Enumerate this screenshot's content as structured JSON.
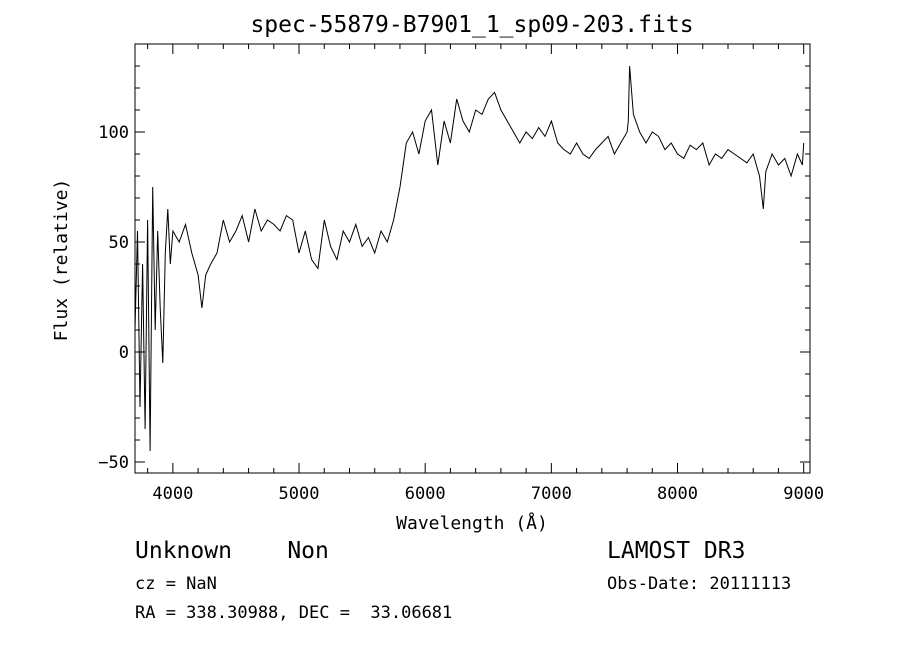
{
  "chart_data": {
    "type": "line",
    "title": "spec-55879-B7901_1_sp09-203.fits",
    "xlabel": "Wavelength (Å)",
    "ylabel": "Flux (relative)",
    "xlim": [
      3700,
      9050
    ],
    "ylim": [
      -55,
      140
    ],
    "xticks": [
      4000,
      5000,
      6000,
      7000,
      8000,
      9000
    ],
    "xtick_labels": [
      "4000",
      "5000",
      "6000",
      "7000",
      "8000",
      "9000"
    ],
    "yticks": [
      -50,
      0,
      50,
      100
    ],
    "ytick_labels": [
      "−50",
      "0",
      "50",
      "100"
    ],
    "line_color": "#000000",
    "grid": false,
    "series": [
      {
        "x": [
          3700,
          3720,
          3740,
          3760,
          3780,
          3800,
          3820,
          3840,
          3860,
          3880,
          3900,
          3920,
          3940,
          3960,
          3980,
          4000,
          4050,
          4100,
          4150,
          4200,
          4230,
          4260,
          4300,
          4350,
          4400,
          4450,
          4500,
          4550,
          4600,
          4650,
          4700,
          4750,
          4800,
          4850,
          4900,
          4950,
          5000,
          5050,
          5100,
          5150,
          5200,
          5250,
          5300,
          5350,
          5400,
          5450,
          5500,
          5550,
          5600,
          5650,
          5700,
          5750,
          5800,
          5850,
          5900,
          5950,
          6000,
          6050,
          6100,
          6150,
          6200,
          6250,
          6300,
          6350,
          6400,
          6450,
          6500,
          6550,
          6600,
          6650,
          6700,
          6750,
          6800,
          6850,
          6900,
          6950,
          7000,
          7050,
          7100,
          7150,
          7200,
          7250,
          7300,
          7350,
          7400,
          7450,
          7500,
          7550,
          7600,
          7610,
          7620,
          7650,
          7700,
          7750,
          7800,
          7850,
          7900,
          7950,
          8000,
          8050,
          8100,
          8150,
          8200,
          8250,
          8300,
          8350,
          8400,
          8450,
          8500,
          8550,
          8600,
          8650,
          8680,
          8700,
          8750,
          8800,
          8850,
          8900,
          8950,
          8990,
          9000
        ],
        "y": [
          10,
          55,
          -25,
          40,
          -35,
          60,
          -45,
          75,
          10,
          55,
          20,
          -5,
          45,
          65,
          40,
          55,
          50,
          58,
          45,
          35,
          20,
          35,
          40,
          45,
          60,
          50,
          55,
          62,
          50,
          65,
          55,
          60,
          58,
          55,
          62,
          60,
          45,
          55,
          42,
          38,
          60,
          48,
          42,
          55,
          50,
          58,
          48,
          52,
          45,
          55,
          50,
          60,
          75,
          95,
          100,
          90,
          105,
          110,
          85,
          105,
          95,
          115,
          105,
          100,
          110,
          108,
          115,
          118,
          110,
          105,
          100,
          95,
          100,
          97,
          102,
          98,
          105,
          95,
          92,
          90,
          95,
          90,
          88,
          92,
          95,
          98,
          90,
          95,
          100,
          105,
          130,
          108,
          100,
          95,
          100,
          98,
          92,
          95,
          90,
          88,
          94,
          92,
          95,
          85,
          90,
          88,
          92,
          90,
          88,
          86,
          90,
          80,
          65,
          82,
          90,
          85,
          88,
          80,
          90,
          85,
          95
        ]
      }
    ]
  },
  "info": {
    "class_line": "Unknown    Non",
    "survey": "LAMOST DR3",
    "cz": "cz = NaN",
    "obs_date": "Obs-Date: 20111113",
    "radec": "RA = 338.30988, DEC =  33.06681"
  }
}
